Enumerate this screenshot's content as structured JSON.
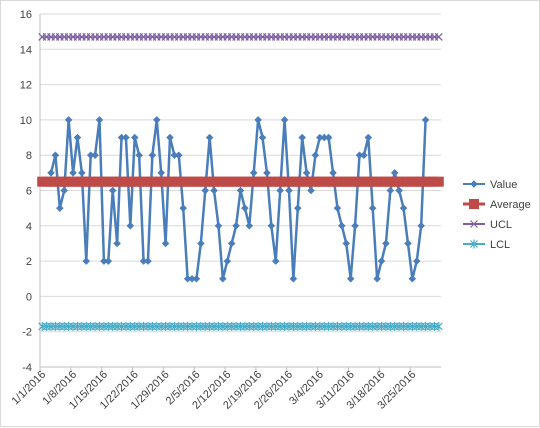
{
  "chart_data": {
    "type": "line",
    "x_dates": [
      "2016-01-01",
      "2016-01-02",
      "2016-01-03",
      "2016-01-04",
      "2016-01-05",
      "2016-01-06",
      "2016-01-07",
      "2016-01-08",
      "2016-01-09",
      "2016-01-10",
      "2016-01-11",
      "2016-01-12",
      "2016-01-13",
      "2016-01-14",
      "2016-01-15",
      "2016-01-16",
      "2016-01-17",
      "2016-01-18",
      "2016-01-19",
      "2016-01-20",
      "2016-01-21",
      "2016-01-22",
      "2016-01-23",
      "2016-01-24",
      "2016-01-25",
      "2016-01-26",
      "2016-01-27",
      "2016-01-28",
      "2016-01-29",
      "2016-01-30",
      "2016-01-31",
      "2016-02-01",
      "2016-02-02",
      "2016-02-03",
      "2016-02-04",
      "2016-02-05",
      "2016-02-06",
      "2016-02-07",
      "2016-02-08",
      "2016-02-09",
      "2016-02-10",
      "2016-02-11",
      "2016-02-12",
      "2016-02-13",
      "2016-02-14",
      "2016-02-15",
      "2016-02-16",
      "2016-02-17",
      "2016-02-18",
      "2016-02-19",
      "2016-02-20",
      "2016-02-21",
      "2016-02-22",
      "2016-02-23",
      "2016-02-24",
      "2016-02-25",
      "2016-02-26",
      "2016-02-27",
      "2016-02-28",
      "2016-02-29",
      "2016-03-01",
      "2016-03-02",
      "2016-03-03",
      "2016-03-04",
      "2016-03-05",
      "2016-03-06",
      "2016-03-07",
      "2016-03-08",
      "2016-03-09",
      "2016-03-10",
      "2016-03-11",
      "2016-03-12",
      "2016-03-13",
      "2016-03-14",
      "2016-03-15",
      "2016-03-16",
      "2016-03-17",
      "2016-03-18",
      "2016-03-19",
      "2016-03-20",
      "2016-03-21",
      "2016-03-22",
      "2016-03-23",
      "2016-03-24",
      "2016-03-25",
      "2016-03-26",
      "2016-03-27",
      "2016-03-28",
      "2016-03-29",
      "2016-03-30",
      "2016-03-31"
    ],
    "x_tick_labels": [
      "1/1/2016",
      "1/8/2016",
      "1/15/2016",
      "1/22/2016",
      "1/29/2016",
      "2/5/2016",
      "2/12/2016",
      "2/19/2016",
      "2/26/2016",
      "3/4/2016",
      "3/11/2016",
      "3/18/2016",
      "3/25/2016"
    ],
    "ylim": [
      -4,
      16
    ],
    "y_ticks": [
      -4,
      -2,
      0,
      2,
      4,
      6,
      8,
      10,
      12,
      14,
      16
    ],
    "y_tick_labels": [
      "-4",
      "-2",
      "0",
      "2",
      "4",
      "6",
      "8",
      "10",
      "12",
      "14",
      "16"
    ],
    "grid": "horizontal",
    "legend_position": "right",
    "series": [
      {
        "name": "Value",
        "color": "#4a7ebb",
        "marker": "diamond",
        "values": [
          7,
          8,
          5,
          6,
          10,
          7,
          9,
          7,
          2,
          8,
          8,
          10,
          2,
          2,
          6,
          3,
          9,
          9,
          4,
          9,
          8,
          2,
          2,
          8,
          10,
          7,
          3,
          9,
          8,
          8,
          5,
          1,
          1,
          1,
          3,
          6,
          9,
          6,
          4,
          1,
          2,
          3,
          4,
          6,
          5,
          4,
          7,
          10,
          9,
          7,
          4,
          2,
          6,
          10,
          6,
          1,
          5,
          9,
          7,
          6,
          8,
          9,
          9,
          9,
          7,
          5,
          4,
          3,
          1,
          4,
          8,
          8,
          9,
          5,
          1,
          2,
          3,
          6,
          7,
          6,
          5,
          3,
          1,
          2,
          4,
          10
        ],
        "x_start": "2016-01-03"
      },
      {
        "name": "Average",
        "color": "#be4b48",
        "marker": "square",
        "constant": 6.5
      },
      {
        "name": "UCL",
        "color": "#7d60a0",
        "marker": "x",
        "constant": 14.7
      },
      {
        "name": "LCL",
        "color": "#4bacc6",
        "marker": "asterisk",
        "constant": -1.7
      }
    ]
  }
}
